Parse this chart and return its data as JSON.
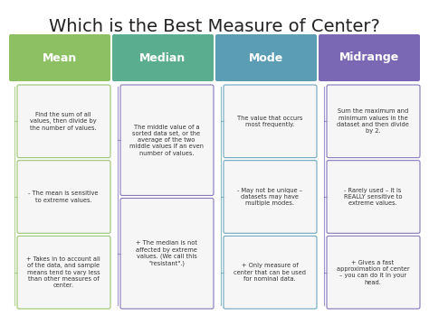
{
  "title": "Which is the Best Measure of Center?",
  "title_fontsize": 14,
  "background_color": "#ffffff",
  "columns": [
    {
      "header": "Mean",
      "header_color": "#8DC063",
      "line_color": "#8DC063",
      "boxes": [
        "Find the sum of all\nvalues, then divide by\nthe number of values.",
        "- The mean is sensitive\nto extreme values.",
        "+ Takes in to account all\nof the data, and sample\nmeans tend to vary less\nthan other measures of\ncenter."
      ]
    },
    {
      "header": "Median",
      "header_color": "#5BAD8F",
      "line_color": "#7B68B5",
      "boxes": [
        "The middle value of a\nsorted data set, or the\naverage of the two\nmiddle values if an even\nnumber of values.",
        "+ The median is not\naffected by extreme\nvalues. (We call this\n\"resistant\".)"
      ]
    },
    {
      "header": "Mode",
      "header_color": "#5B9DB5",
      "line_color": "#5B9DB5",
      "boxes": [
        "The value that occurs\nmost frequently.",
        "- May not be unique –\ndatasets may have\nmultiple modes.",
        "+ Only measure of\ncenter that can be used\nfor nominal data."
      ]
    },
    {
      "header": "Midrange",
      "header_color": "#7B68B5",
      "line_color": "#7B68B5",
      "boxes": [
        "Sum the maximum and\nminimum values in the\ndataset and then divide\nby 2.",
        "- Rarely used – it is\nREALLY sensitive to\nextreme values.",
        "+ Gives a fast\napproximation of center\n– you can do it in your\nhead."
      ]
    }
  ],
  "box_text_color": "#333333",
  "header_text_color": "#ffffff",
  "header_fontsize": 9,
  "body_fontsize": 4.8
}
